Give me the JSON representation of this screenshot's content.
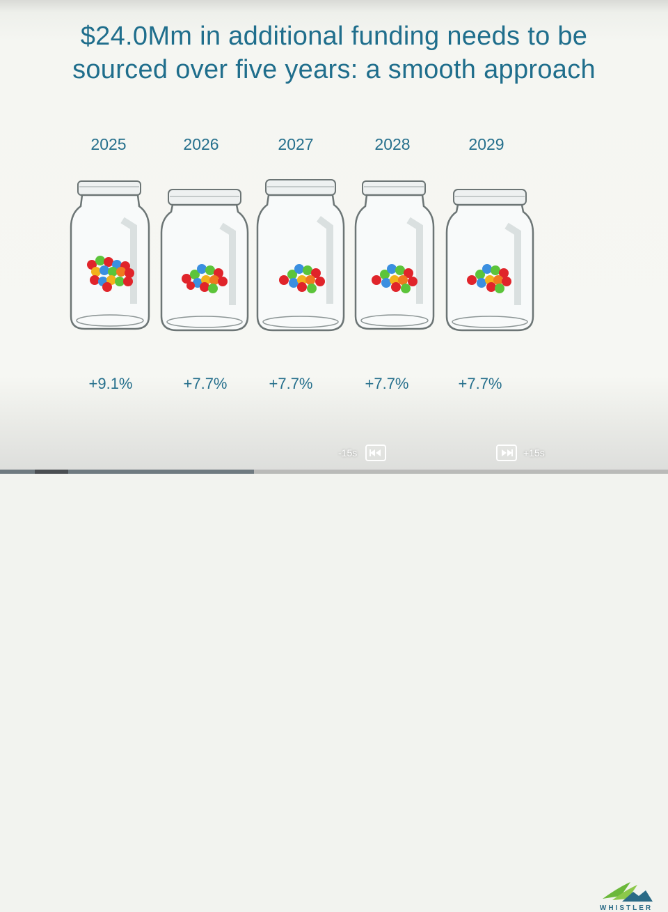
{
  "slide": {
    "title_line1": "$24.0Mm in additional funding needs to be",
    "title_line2": "sourced over five years: a smooth approach",
    "years": [
      "2025",
      "2026",
      "2027",
      "2028",
      "2029"
    ],
    "increases": [
      "+9.1%",
      "+7.7%",
      "+7.7%",
      "+7.7%",
      "+7.7%"
    ]
  },
  "controls": {
    "rewind_label": "-15s",
    "forward_label": "+15s",
    "rewind_icon": "rewind-icon",
    "forward_icon": "fast-forward-icon"
  },
  "logo": {
    "text": "WHISTLER"
  },
  "colors": {
    "title": "#1f6e8c",
    "candy_red": "#e0242a",
    "candy_green": "#5cc43a",
    "candy_blue": "#3b8fe0",
    "candy_yellow": "#f2b21c",
    "candy_orange": "#f07a1f"
  }
}
